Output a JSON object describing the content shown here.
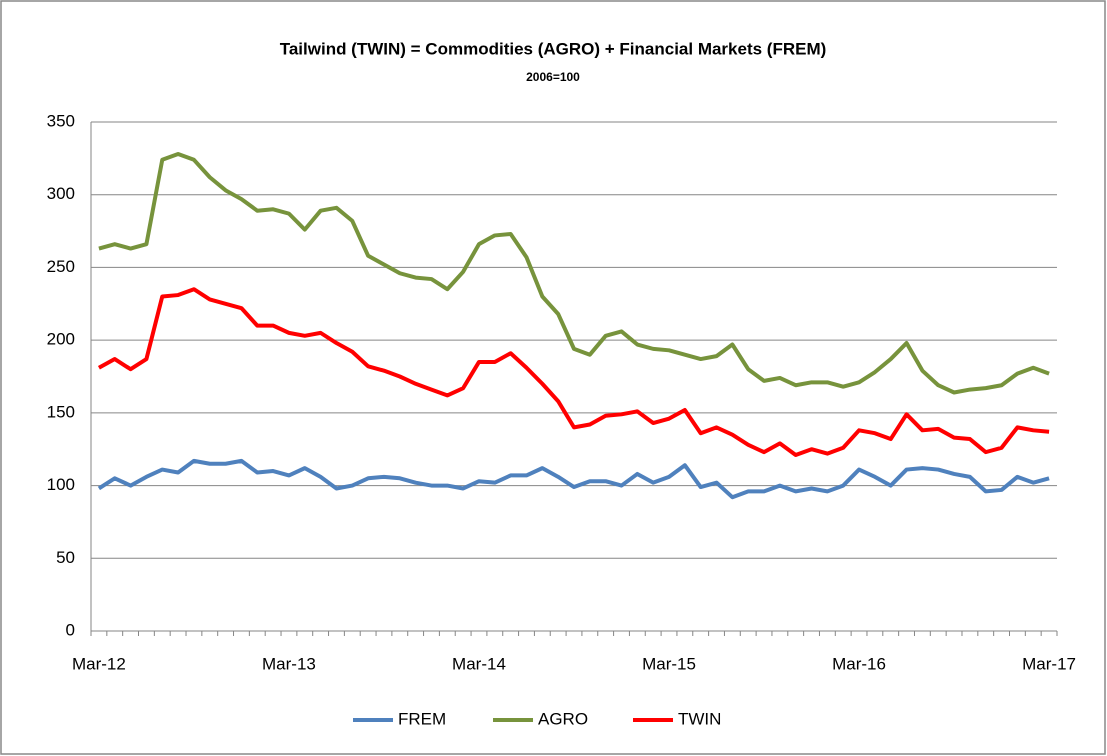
{
  "chart_data": {
    "type": "line",
    "title": "Tailwind (TWIN) = Commodities (AGRO) + Financial Markets (FREM)",
    "subtitle": "2006=100",
    "categories": [
      "Mar-12",
      null,
      null,
      null,
      null,
      null,
      null,
      null,
      null,
      null,
      null,
      null,
      "Mar-13",
      null,
      null,
      null,
      null,
      null,
      null,
      null,
      null,
      null,
      null,
      null,
      "Mar-14",
      null,
      null,
      null,
      null,
      null,
      null,
      null,
      null,
      null,
      null,
      null,
      "Mar-15",
      null,
      null,
      null,
      null,
      null,
      null,
      null,
      null,
      null,
      null,
      null,
      "Mar-16",
      null,
      null,
      null,
      null,
      null,
      null,
      null,
      null,
      null,
      null,
      null,
      "Mar-17"
    ],
    "series": [
      {
        "name": "FREM",
        "color": "#4f81bd",
        "values": [
          98,
          105,
          100,
          106,
          111,
          109,
          117,
          115,
          115,
          117,
          109,
          110,
          107,
          112,
          106,
          98,
          100,
          105,
          106,
          105,
          102,
          100,
          100,
          98,
          103,
          102,
          107,
          107,
          112,
          106,
          99,
          103,
          103,
          100,
          108,
          102,
          106,
          114,
          99,
          102,
          92,
          96,
          96,
          100,
          96,
          98,
          96,
          100,
          111,
          106,
          100,
          111,
          112,
          111,
          108,
          106,
          96,
          97,
          106,
          102,
          105
        ]
      },
      {
        "name": "AGRO",
        "color": "#77933c",
        "values": [
          263,
          266,
          263,
          266,
          324,
          328,
          324,
          312,
          303,
          297,
          289,
          290,
          287,
          276,
          289,
          291,
          282,
          258,
          252,
          246,
          243,
          242,
          235,
          247,
          266,
          272,
          273,
          257,
          230,
          218,
          194,
          190,
          203,
          206,
          197,
          194,
          193,
          190,
          187,
          189,
          197,
          180,
          172,
          174,
          169,
          171,
          171,
          168,
          171,
          178,
          187,
          198,
          179,
          169,
          164,
          166,
          167,
          169,
          177,
          181,
          177
        ]
      },
      {
        "name": "TWIN",
        "color": "#ff0000",
        "values": [
          181,
          187,
          180,
          187,
          230,
          231,
          235,
          228,
          225,
          222,
          210,
          210,
          205,
          203,
          205,
          198,
          192,
          182,
          179,
          175,
          170,
          166,
          162,
          167,
          185,
          185,
          191,
          181,
          170,
          158,
          140,
          142,
          148,
          149,
          151,
          143,
          146,
          152,
          136,
          140,
          135,
          128,
          123,
          129,
          121,
          125,
          122,
          126,
          138,
          136,
          132,
          149,
          138,
          139,
          133,
          132,
          123,
          126,
          140,
          138,
          137
        ]
      }
    ],
    "ylim": [
      0,
      350
    ],
    "yticks": [
      0,
      50,
      100,
      150,
      200,
      250,
      300,
      350
    ],
    "grid": true,
    "legend": "bottom"
  }
}
